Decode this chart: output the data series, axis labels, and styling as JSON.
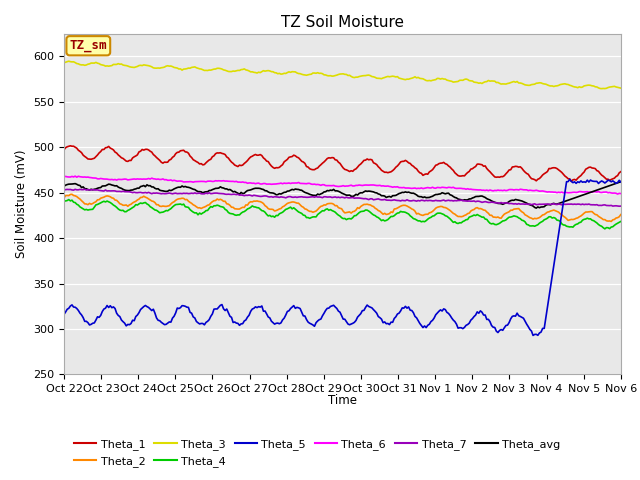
{
  "title": "TZ Soil Moisture",
  "ylabel": "Soil Moisture (mV)",
  "xlabel": "Time",
  "ylim": [
    250,
    625
  ],
  "yticks": [
    250,
    300,
    350,
    400,
    450,
    500,
    550,
    600
  ],
  "xtick_labels": [
    "Oct 22",
    "Oct 23",
    "Oct 24",
    "Oct 25",
    "Oct 26",
    "Oct 27",
    "Oct 28",
    "Oct 29",
    "Oct 30",
    "Oct 31",
    "Nov 1",
    "Nov 2",
    "Nov 3",
    "Nov 4",
    "Nov 5",
    "Nov 6"
  ],
  "n_points": 350,
  "colors": {
    "Theta_1": "#cc0000",
    "Theta_2": "#ff8800",
    "Theta_3": "#dddd00",
    "Theta_4": "#00cc00",
    "Theta_5": "#0000cc",
    "Theta_6": "#ff00ff",
    "Theta_7": "#9900bb",
    "Theta_avg": "#000000"
  },
  "annotation_text": "TZ_sm",
  "annotation_color": "#990000",
  "annotation_bg": "#ffffaa",
  "annotation_border": "#cc8800",
  "background_color": "#e8e8e8"
}
